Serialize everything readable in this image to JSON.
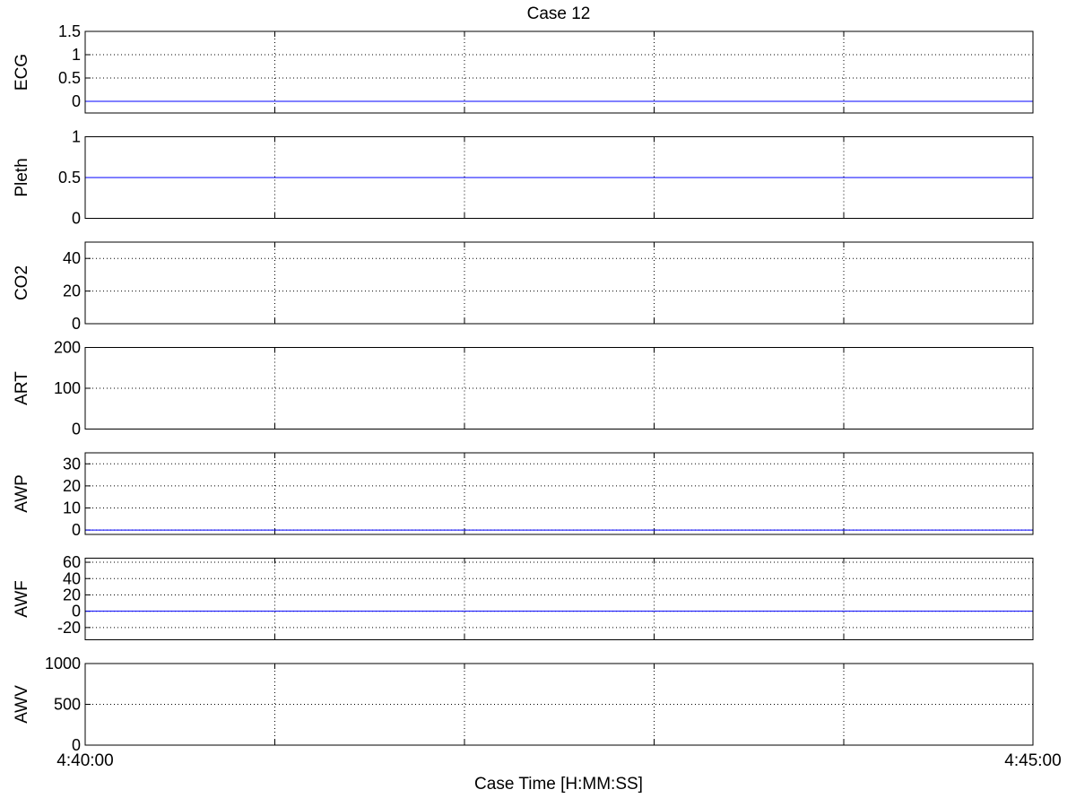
{
  "title": "Case 12",
  "xlabel": "Case Time [H:MM:SS]",
  "x_tick_labels": [
    "4:40:00",
    "4:45:00"
  ],
  "colors": {
    "trace": "#0000ff",
    "axis": "#000000",
    "grid": "#000000",
    "background": "#ffffff"
  },
  "chart_data": [
    {
      "type": "line",
      "ylabel": "ECG",
      "ylim": [
        -0.25,
        1.5
      ],
      "yticks": [
        0,
        0.5,
        1,
        1.5
      ],
      "ytick_labels": [
        "0",
        "0.5",
        "1",
        "1.5"
      ],
      "grid": true,
      "series": [
        {
          "x": [
            0,
            300
          ],
          "y": [
            0,
            0
          ]
        }
      ]
    },
    {
      "type": "line",
      "ylabel": "Pleth",
      "ylim": [
        0,
        1
      ],
      "yticks": [
        0,
        0.5,
        1
      ],
      "ytick_labels": [
        "0",
        "0.5",
        "1"
      ],
      "grid": true,
      "series": [
        {
          "x": [
            0,
            300
          ],
          "y": [
            0.5,
            0.5
          ]
        }
      ]
    },
    {
      "type": "line",
      "ylabel": "CO2",
      "ylim": [
        0,
        50
      ],
      "yticks": [
        0,
        20,
        40
      ],
      "ytick_labels": [
        "0",
        "20",
        "40"
      ],
      "grid": true,
      "series": [
        {
          "x": [
            0,
            300
          ],
          "y": [
            0,
            0
          ]
        }
      ]
    },
    {
      "type": "line",
      "ylabel": "ART",
      "ylim": [
        0,
        200
      ],
      "yticks": [
        0,
        100,
        200
      ],
      "ytick_labels": [
        "0",
        "100",
        "200"
      ],
      "grid": true,
      "series": []
    },
    {
      "type": "line",
      "ylabel": "AWP",
      "ylim": [
        -2,
        35
      ],
      "yticks": [
        0,
        10,
        20,
        30
      ],
      "ytick_labels": [
        "0",
        "10",
        "20",
        "30"
      ],
      "grid": true,
      "series": [
        {
          "x": [
            0,
            300
          ],
          "y": [
            0,
            0
          ]
        }
      ]
    },
    {
      "type": "line",
      "ylabel": "AWF",
      "ylim": [
        -35,
        65
      ],
      "yticks": [
        -20,
        0,
        20,
        40,
        60
      ],
      "ytick_labels": [
        "-20",
        "0",
        "20",
        "40",
        "60"
      ],
      "grid": true,
      "series": [
        {
          "x": [
            0,
            300
          ],
          "y": [
            0,
            0
          ]
        }
      ]
    },
    {
      "type": "line",
      "ylabel": "AWV",
      "ylim": [
        0,
        1000
      ],
      "yticks": [
        0,
        500,
        1000
      ],
      "ytick_labels": [
        "0",
        "500",
        "1000"
      ],
      "grid": true,
      "series": [
        {
          "x": [
            0,
            300
          ],
          "y": [
            0,
            0
          ]
        }
      ]
    }
  ]
}
